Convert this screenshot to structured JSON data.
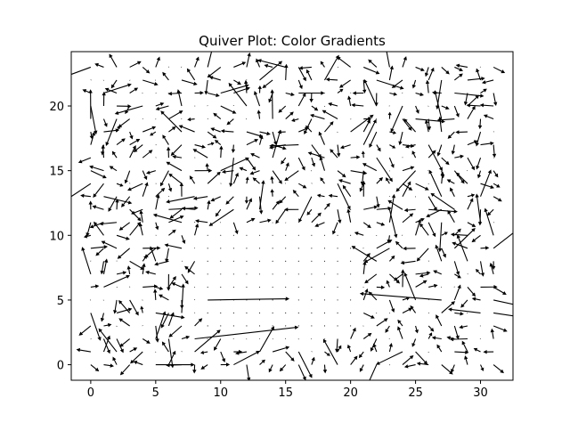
{
  "chart_data": {
    "type": "quiver",
    "title": "Quiver Plot: Color Gradients",
    "xlabel": "",
    "ylabel": "",
    "xlim": [
      -1.5,
      32.5
    ],
    "ylim": [
      -1.2,
      24.2
    ],
    "xticks": [
      0,
      5,
      10,
      15,
      20,
      25,
      30
    ],
    "yticks": [
      0,
      5,
      10,
      15,
      20
    ],
    "grid": false,
    "arrow_color": "#000000",
    "grid_points": {
      "x_start": 0,
      "x_end": 31,
      "y_start": 0,
      "y_end": 23,
      "step": 1
    },
    "field_description": "Dense quiver field with randomly oriented short arrows; a calm region of near-zero vectors spans roughly x 9–20, y 3–10.",
    "notable_vectors": [
      {
        "x": 8,
        "y": 2,
        "u": 8,
        "v": 0.9
      },
      {
        "x": 9,
        "y": 5,
        "u": 6.3,
        "v": 0.1
      },
      {
        "x": 8,
        "y": 1,
        "u": 2,
        "v": 1.7
      },
      {
        "x": 10,
        "y": 15,
        "u": 2.2,
        "v": 1
      },
      {
        "x": 27,
        "y": 5,
        "u": -6.3,
        "v": 0.5
      },
      {
        "x": 31,
        "y": 5,
        "u": 2.3,
        "v": -0.5
      },
      {
        "x": 31,
        "y": 4,
        "u": 2,
        "v": -0.3
      },
      {
        "x": 30,
        "y": 4,
        "u": -2.5,
        "v": 0.3
      },
      {
        "x": 5,
        "y": 0,
        "u": 3,
        "v": 0
      },
      {
        "x": 9,
        "y": 23,
        "u": 0.5,
        "v": 2
      },
      {
        "x": 16,
        "y": 21,
        "u": 2,
        "v": 0
      }
    ]
  }
}
